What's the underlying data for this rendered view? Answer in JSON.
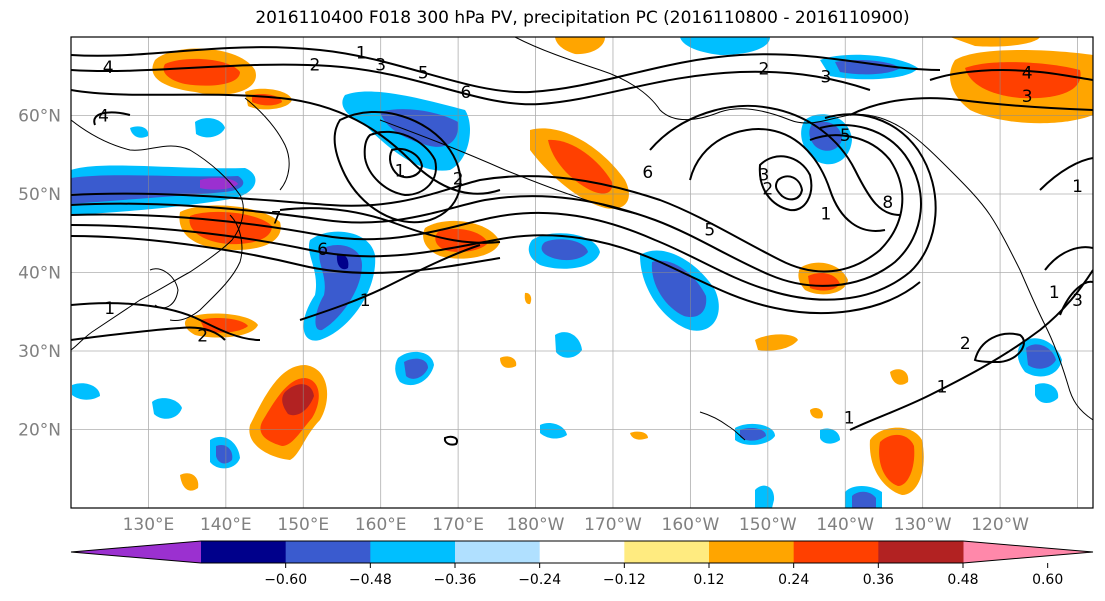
{
  "title": "2016110400 F018 300 hPa PV, precipitation PC (2016110800 - 2016110900)",
  "map": {
    "lon_range": [
      120,
      252
    ],
    "lat_range": [
      10,
      70
    ],
    "lat_ticks": [
      {
        "lat": 20,
        "label": "20°N"
      },
      {
        "lat": 30,
        "label": "30°N"
      },
      {
        "lat": 40,
        "label": "40°N"
      },
      {
        "lat": 50,
        "label": "50°N"
      },
      {
        "lat": 60,
        "label": "60°N"
      }
    ],
    "lon_ticks": [
      {
        "lon": 130,
        "label": "130°E"
      },
      {
        "lon": 140,
        "label": "140°E"
      },
      {
        "lon": 150,
        "label": "150°E"
      },
      {
        "lon": 160,
        "label": "160°E"
      },
      {
        "lon": 170,
        "label": "170°E"
      },
      {
        "lon": 180,
        "label": "180°W"
      },
      {
        "lon": 190,
        "label": "170°W"
      },
      {
        "lon": 200,
        "label": "160°W"
      },
      {
        "lon": 210,
        "label": "150°W"
      },
      {
        "lon": 220,
        "label": "140°W"
      },
      {
        "lon": 230,
        "label": "130°W"
      },
      {
        "lon": 240,
        "label": "120°W"
      }
    ],
    "grid": true,
    "contour_variable": "300 hPa PV",
    "shaded_variable": "precipitation PC",
    "pv_contour_labels": [
      {
        "text": "4",
        "lon": 124.8,
        "lat": 66.2
      },
      {
        "text": "4",
        "lon": 124.2,
        "lat": 60.0
      },
      {
        "text": "1",
        "lon": 157.5,
        "lat": 68.0
      },
      {
        "text": "2",
        "lon": 151.5,
        "lat": 66.5
      },
      {
        "text": "3",
        "lon": 160.0,
        "lat": 66.5
      },
      {
        "text": "5",
        "lon": 165.5,
        "lat": 65.5
      },
      {
        "text": "6",
        "lon": 171.0,
        "lat": 63.0
      },
      {
        "text": "1",
        "lon": 162.5,
        "lat": 53.0
      },
      {
        "text": "2",
        "lon": 170.0,
        "lat": 52.0
      },
      {
        "text": "7",
        "lon": 146.5,
        "lat": 47.0
      },
      {
        "text": "6",
        "lon": 152.5,
        "lat": 43.0
      },
      {
        "text": "1",
        "lon": 158.0,
        "lat": 36.5
      },
      {
        "text": "1",
        "lon": 125.0,
        "lat": 35.5
      },
      {
        "text": "2",
        "lon": 137.0,
        "lat": 32.0
      },
      {
        "text": "6",
        "lon": 194.5,
        "lat": 52.8
      },
      {
        "text": "5",
        "lon": 202.5,
        "lat": 45.5
      },
      {
        "text": "2",
        "lon": 209.5,
        "lat": 66.0
      },
      {
        "text": "3",
        "lon": 217.5,
        "lat": 65.0
      },
      {
        "text": "3",
        "lon": 209.5,
        "lat": 52.5
      },
      {
        "text": "2",
        "lon": 210.0,
        "lat": 50.7
      },
      {
        "text": "1",
        "lon": 217.5,
        "lat": 47.5
      },
      {
        "text": "8",
        "lon": 225.5,
        "lat": 49.0
      },
      {
        "text": "5",
        "lon": 220.0,
        "lat": 57.5
      },
      {
        "text": "4",
        "lon": 243.5,
        "lat": 65.5
      },
      {
        "text": "3",
        "lon": 243.5,
        "lat": 62.5
      },
      {
        "text": "1",
        "lon": 220.5,
        "lat": 21.5
      },
      {
        "text": "1",
        "lon": 232.5,
        "lat": 25.5
      },
      {
        "text": "2",
        "lon": 235.5,
        "lat": 31.0
      },
      {
        "text": "1",
        "lon": 250.0,
        "lat": 51.0
      },
      {
        "text": "1",
        "lon": 247.0,
        "lat": 37.5
      },
      {
        "text": "3",
        "lon": 250.0,
        "lat": 36.5
      }
    ]
  },
  "colorbar": {
    "colors": [
      "#9b30d0",
      "#00008b",
      "#3a5bcf",
      "#00bfff",
      "#b0e0ff",
      "#ffffff",
      "#ffeb80",
      "#ffa500",
      "#ff4000",
      "#b22222",
      "#ff88aa"
    ],
    "extend_min_color": "#9b30d0",
    "extend_max_color": "#ff88aa",
    "ticks": [
      "−0.60",
      "−0.48",
      "−0.36",
      "−0.24",
      "−0.12",
      "0.12",
      "0.24",
      "0.36",
      "0.48",
      "0.60"
    ]
  }
}
